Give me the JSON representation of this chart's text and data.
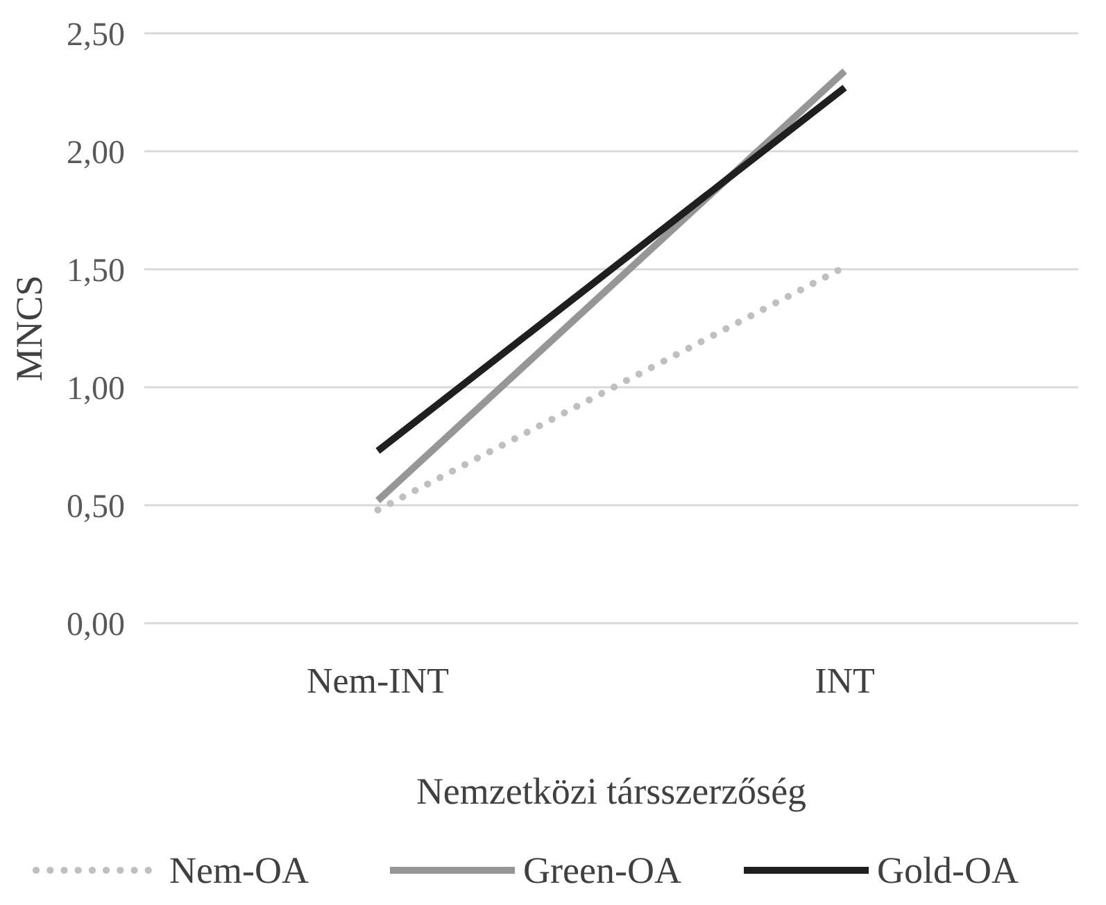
{
  "chart_data": {
    "type": "line",
    "xlabel": "Nemzetközi társszerzőség",
    "ylabel": "MNCS",
    "categories": [
      "Nem-INT",
      "INT"
    ],
    "series": [
      {
        "name": "Nem-OA",
        "color": "#bfbfbf",
        "line_style": "dotted",
        "values": [
          0.48,
          1.51
        ]
      },
      {
        "name": "Green-OA",
        "color": "#969696",
        "line_style": "solid",
        "values": [
          0.52,
          2.34
        ]
      },
      {
        "name": "Gold-OA",
        "color": "#1f1f1f",
        "line_style": "solid",
        "values": [
          0.73,
          2.27
        ]
      }
    ],
    "ylim": [
      0,
      2.5
    ],
    "yticks": [
      {
        "value": 0,
        "label": "0,00"
      },
      {
        "value": 0.5,
        "label": "0,50"
      },
      {
        "value": 1,
        "label": "1,00"
      },
      {
        "value": 1.5,
        "label": "1,50"
      },
      {
        "value": 2,
        "label": "2,00"
      },
      {
        "value": 2.5,
        "label": "2,50"
      }
    ],
    "grid": "y",
    "legend": "bottom",
    "marker": "none"
  }
}
